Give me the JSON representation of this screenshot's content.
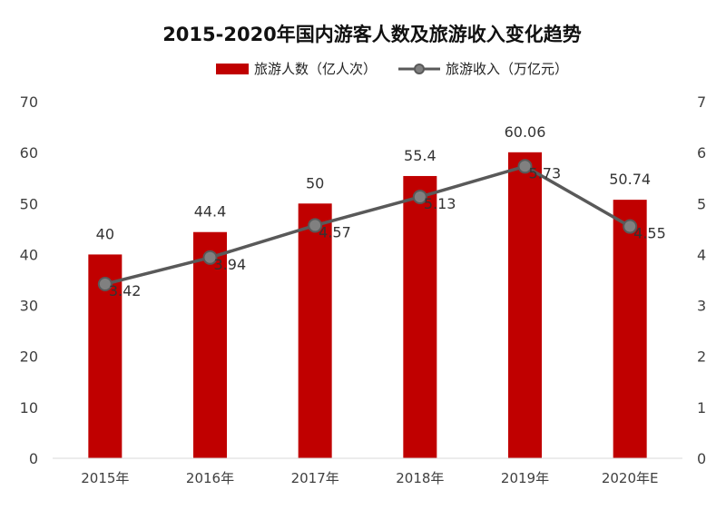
{
  "chart_data": {
    "type": "bar",
    "title": "2015-2020年国内游客人数及旅游收入变化趋势",
    "categories": [
      "2015年",
      "2016年",
      "2017年",
      "2018年",
      "2019年",
      "2020年E"
    ],
    "series": [
      {
        "name": "旅游人数（亿人次）",
        "type": "bar",
        "axis": "left",
        "color": "#C00000",
        "values": [
          40,
          44.4,
          50,
          55.4,
          60.06,
          50.74
        ]
      },
      {
        "name": "旅游收入（万亿元）",
        "type": "line",
        "axis": "right",
        "color": "#595959",
        "marker_color": "#808080",
        "values": [
          3.42,
          3.94,
          4.57,
          5.13,
          5.73,
          4.55
        ]
      }
    ],
    "ylim_left": [
      0,
      70
    ],
    "yticks_left": [
      "0",
      "10",
      "20",
      "30",
      "40",
      "50",
      "60",
      "70"
    ],
    "ylim_right": [
      0,
      7
    ],
    "yticks_right": [
      "0",
      "1",
      "2",
      "3",
      "4",
      "5",
      "6",
      "7"
    ],
    "legend_position": "top-center",
    "grid": false
  }
}
